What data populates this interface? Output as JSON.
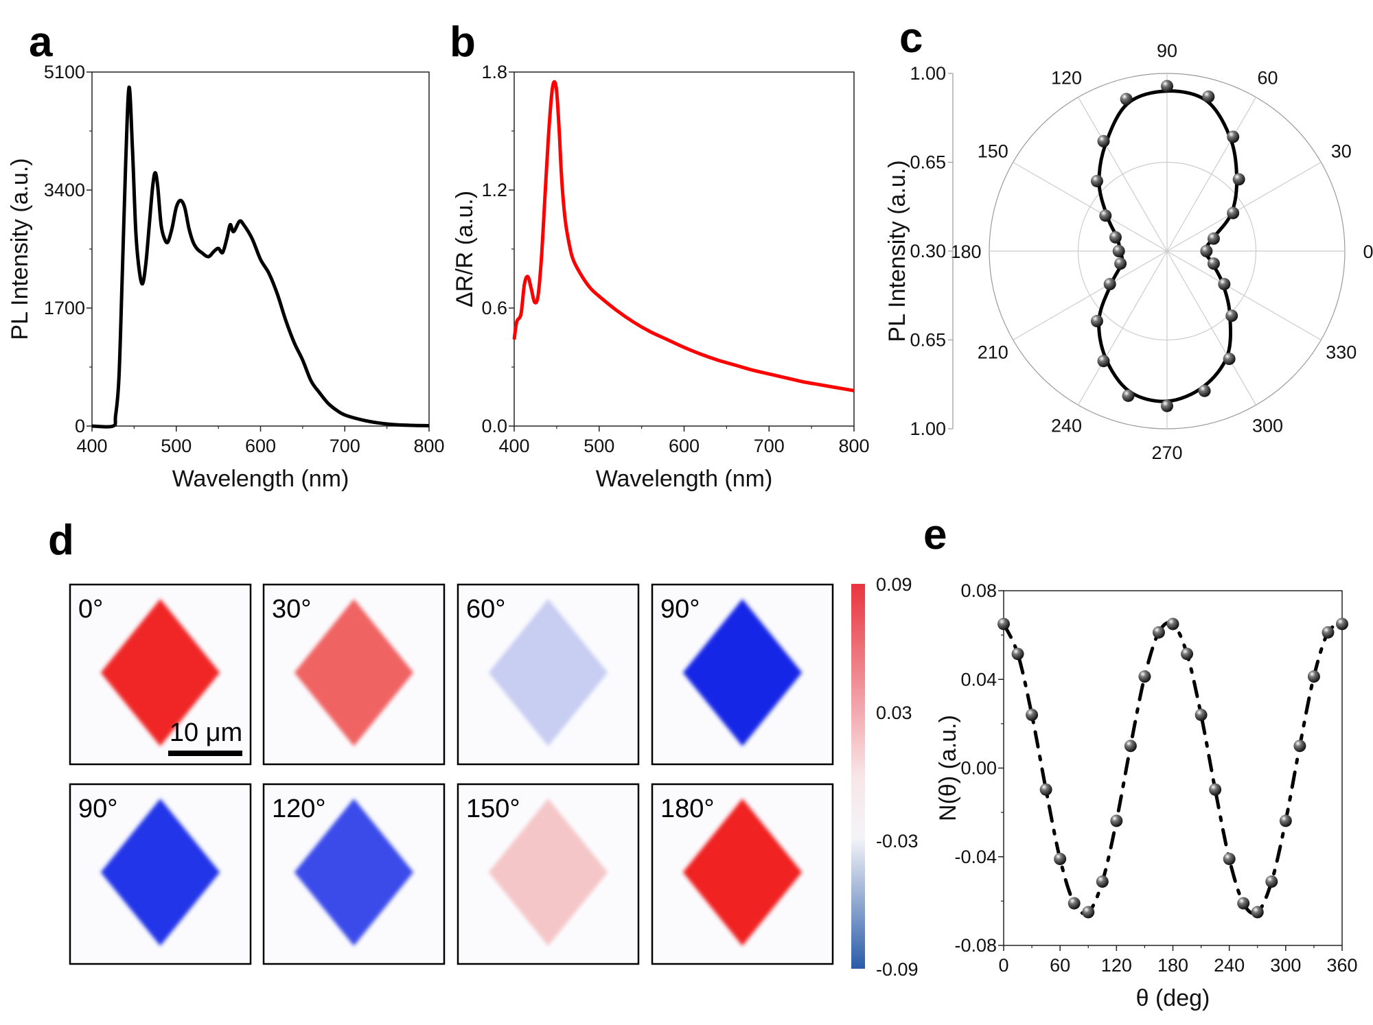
{
  "panel_letters": {
    "a": "a",
    "b": "b",
    "c": "c",
    "d": "d",
    "e": "e"
  },
  "chart_data": [
    {
      "panel": "a",
      "type": "line",
      "xlabel": "Wavelength (nm)",
      "ylabel": "PL Intensity (a.u.)",
      "xlim": [
        400,
        800
      ],
      "ylim": [
        0,
        5100
      ],
      "xticks": [
        "400",
        "500",
        "600",
        "700",
        "800"
      ],
      "yticks": [
        "0",
        "1700",
        "3400",
        "5100"
      ],
      "color": "#000000",
      "x": [
        400,
        425,
        428,
        432,
        436,
        440,
        444,
        448,
        452,
        456,
        460,
        464,
        468,
        472,
        475,
        478,
        482,
        486,
        490,
        495,
        500,
        505,
        510,
        515,
        520,
        525,
        530,
        538,
        545,
        550,
        555,
        560,
        564,
        568,
        575,
        580,
        590,
        600,
        610,
        620,
        630,
        640,
        650,
        660,
        670,
        680,
        690,
        700,
        720,
        740,
        760,
        780,
        800
      ],
      "y": [
        0,
        0,
        150,
        700,
        2200,
        3800,
        4880,
        4000,
        2800,
        2250,
        2050,
        2350,
        2900,
        3450,
        3650,
        3450,
        2900,
        2700,
        2650,
        2850,
        3150,
        3250,
        3150,
        2850,
        2650,
        2550,
        2500,
        2440,
        2520,
        2560,
        2500,
        2700,
        2900,
        2800,
        2950,
        2900,
        2700,
        2400,
        2200,
        1900,
        1520,
        1200,
        950,
        650,
        480,
        330,
        230,
        160,
        90,
        45,
        20,
        10,
        5
      ]
    },
    {
      "panel": "b",
      "type": "line",
      "xlabel": "Wavelength (nm)",
      "ylabel": "ΔR/R (a.u.)",
      "xlim": [
        400,
        800
      ],
      "ylim": [
        0,
        1.8
      ],
      "xticks": [
        "400",
        "500",
        "600",
        "700",
        "800"
      ],
      "yticks": [
        "0.0",
        "0.6",
        "1.2",
        "1.8"
      ],
      "color": "#ff0000",
      "x": [
        400,
        403,
        408,
        412,
        416,
        420,
        424,
        428,
        432,
        436,
        440,
        444,
        447,
        450,
        453,
        456,
        460,
        465,
        470,
        480,
        490,
        500,
        520,
        540,
        560,
        580,
        600,
        620,
        640,
        660,
        680,
        700,
        720,
        740,
        760,
        780,
        800
      ],
      "y": [
        0.44,
        0.53,
        0.57,
        0.72,
        0.76,
        0.7,
        0.63,
        0.66,
        0.85,
        1.15,
        1.45,
        1.68,
        1.75,
        1.7,
        1.5,
        1.25,
        1.05,
        0.92,
        0.84,
        0.76,
        0.7,
        0.66,
        0.59,
        0.53,
        0.48,
        0.44,
        0.4,
        0.365,
        0.335,
        0.31,
        0.285,
        0.265,
        0.245,
        0.225,
        0.21,
        0.195,
        0.18
      ]
    },
    {
      "panel": "c",
      "type": "polar-scatter",
      "ylabel": "PL Intensity (a.u.)",
      "rlim": [
        0.3,
        1.0
      ],
      "rticks": [
        "1.00",
        "0.65",
        "0.30",
        "0.65",
        "1.00"
      ],
      "angle_ticks": [
        "0",
        "30",
        "60",
        "90",
        "120",
        "150",
        "180",
        "210",
        "240",
        "270",
        "300",
        "330"
      ],
      "grid": true,
      "angles": [
        0,
        15,
        30,
        45,
        60,
        75,
        90,
        105,
        120,
        135,
        150,
        165,
        180,
        195,
        210,
        225,
        240,
        255,
        270,
        285,
        300,
        315,
        330,
        345
      ],
      "values": [
        0.455,
        0.49,
        0.6,
        0.7,
        0.82,
        0.93,
        0.95,
        0.92,
        0.8,
        0.69,
        0.58,
        0.51,
        0.49,
        0.49,
        0.56,
        0.69,
        0.8,
        0.89,
        0.91,
        0.87,
        0.79,
        0.66,
        0.56,
        0.49
      ],
      "fit_line": "solid"
    },
    {
      "panel": "d",
      "type": "heatmap",
      "images": [
        {
          "label": "0°",
          "color": "#f02828",
          "value": 0.085
        },
        {
          "label": "30°",
          "color": "#f06464",
          "value": 0.05
        },
        {
          "label": "60°",
          "color": "#c8cdf2",
          "value": -0.045
        },
        {
          "label": "90°",
          "color": "#1428e6",
          "value": -0.09
        },
        {
          "label": "90°",
          "color": "#2234e8",
          "value": -0.088
        },
        {
          "label": "120°",
          "color": "#3a4cea",
          "value": -0.08
        },
        {
          "label": "150°",
          "color": "#f5c6c8",
          "value": 0.005
        },
        {
          "label": "180°",
          "color": "#f02424",
          "value": 0.085
        }
      ],
      "scale_bar": "10 μm",
      "colorbar": {
        "ticks": [
          "0.09",
          "0.03",
          "-0.03",
          "-0.09"
        ],
        "top_color": "#e8343f",
        "mid_color": "#ffffff",
        "bottom_color": "#2a5ba8"
      }
    },
    {
      "panel": "e",
      "type": "scatter",
      "xlabel": "θ (deg)",
      "ylabel": "N(θ) (a.u.)",
      "xlim": [
        0,
        360
      ],
      "ylim": [
        -0.08,
        0.08
      ],
      "xticks": [
        "0",
        "60",
        "120",
        "180",
        "240",
        "300",
        "360"
      ],
      "yticks": [
        "-0.08",
        "-0.04",
        "0.00",
        "0.04",
        "0.08"
      ],
      "x": [
        0,
        15,
        30,
        45,
        60,
        75,
        90,
        105,
        120,
        135,
        150,
        165,
        180,
        195,
        210,
        225,
        240,
        255,
        270,
        285,
        300,
        315,
        330,
        345,
        360
      ],
      "y": [
        0.065,
        0.0515,
        0.024,
        -0.0097,
        -0.041,
        -0.061,
        -0.065,
        -0.0512,
        -0.0238,
        0.01,
        0.0413,
        0.0612,
        0.065,
        0.0515,
        0.024,
        -0.0097,
        -0.041,
        -0.061,
        -0.065,
        -0.0512,
        -0.0238,
        0.01,
        0.0413,
        0.0612,
        0.065
      ],
      "fit_line": "dash-dot"
    }
  ]
}
